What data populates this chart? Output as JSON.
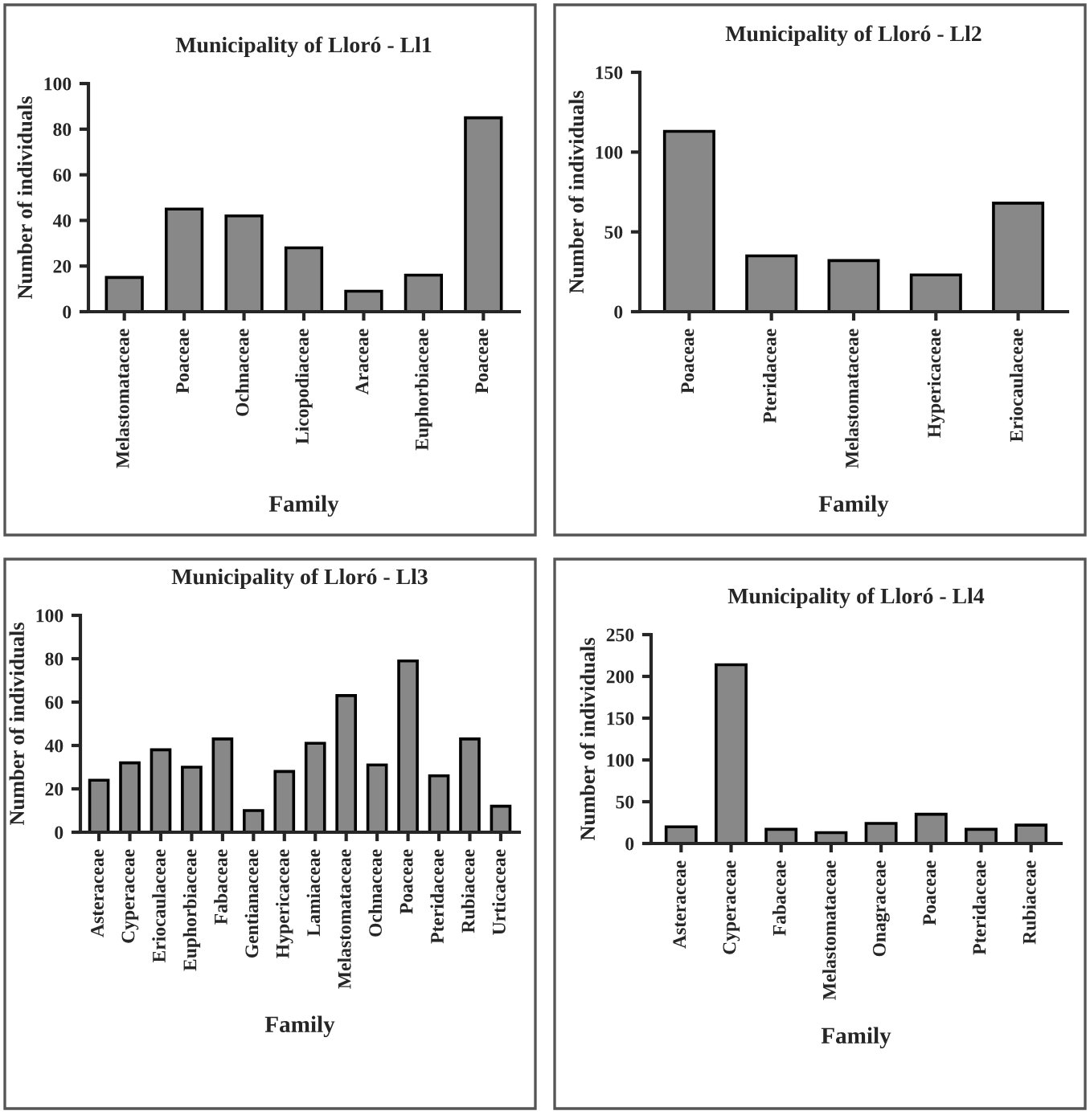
{
  "chart_data": [
    {
      "type": "bar",
      "title": "Municipality of Lloró - Ll1",
      "xlabel": "Family",
      "ylabel": "Number of individuals",
      "categories": [
        "Melastomataceae",
        "Poaceae",
        "Ochnaceae",
        "Licopodiaceae",
        "Araceae",
        "Euphorbiaceae",
        "Poaceae"
      ],
      "values": [
        15,
        45,
        42,
        28,
        9,
        16,
        85
      ],
      "color": "#888888",
      "ylim": [
        0,
        100
      ],
      "yticks": [
        0,
        20,
        40,
        60,
        80,
        100
      ],
      "grid": false,
      "legend": false
    },
    {
      "type": "bar",
      "title": "Municipality of Lloró - Ll2",
      "xlabel": "Family",
      "ylabel": "Number of individuals",
      "categories": [
        "Poaceae",
        "Pteridaceae",
        "Melastomataceae",
        "Hypericaceae",
        "Eriocaulaceae"
      ],
      "values": [
        113,
        35,
        32,
        23,
        68
      ],
      "color": "#888888",
      "ylim": [
        0,
        150
      ],
      "yticks": [
        0,
        50,
        100,
        150
      ],
      "grid": false,
      "legend": false
    },
    {
      "type": "bar",
      "title": "Municipality of Lloró - Ll3",
      "xlabel": "Family",
      "ylabel": "Number of individuals",
      "categories": [
        "Asteraceae",
        "Cyperaceae",
        "Eriocaulaceae",
        "Euphorbiaceae",
        "Fabaceae",
        "Gentianaceae",
        "Hypericaceae",
        "Lamiaceae",
        "Melastomataceae",
        "Ochnaceae",
        "Poaceae",
        "Pteridaceae",
        "Rubiaceae",
        "Urticaceae"
      ],
      "values": [
        24,
        32,
        38,
        30,
        43,
        10,
        28,
        41,
        63,
        31,
        79,
        26,
        43,
        12
      ],
      "color": "#888888",
      "ylim": [
        0,
        100
      ],
      "yticks": [
        0,
        20,
        40,
        60,
        80,
        100
      ],
      "grid": false,
      "legend": false
    },
    {
      "type": "bar",
      "title": "Municipality of Lloró - Ll4",
      "xlabel": "Family",
      "ylabel": "Number of individuals",
      "categories": [
        "Asteraceae",
        "Cyperaceae",
        "Fabaceae",
        "Melastomataceae",
        "Onagraceae",
        "Poaceae",
        "Pteridaceae",
        "Rubiaceae"
      ],
      "values": [
        20,
        214,
        17,
        13,
        24,
        35,
        17,
        22
      ],
      "color": "#888888",
      "ylim": [
        0,
        250
      ],
      "yticks": [
        0,
        50,
        100,
        150,
        200,
        250
      ],
      "grid": false,
      "legend": false
    }
  ]
}
